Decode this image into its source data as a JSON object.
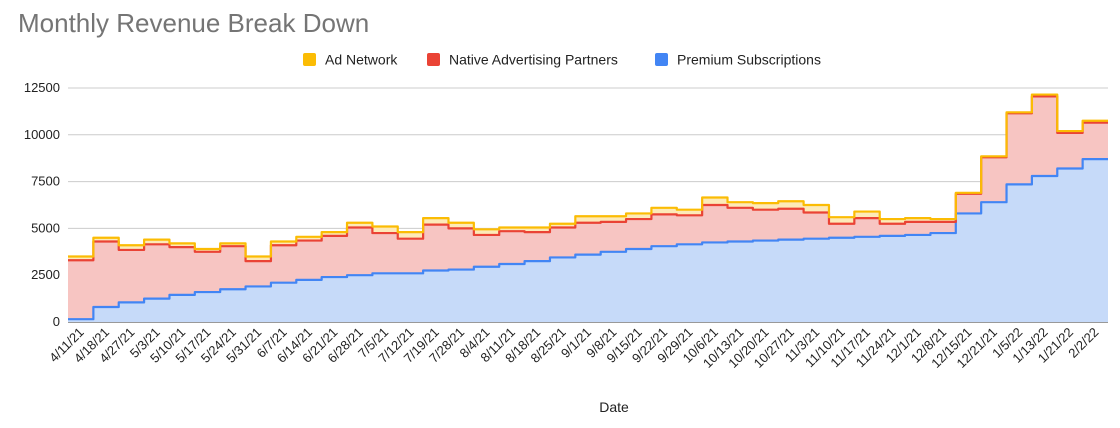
{
  "chart_data": {
    "type": "area",
    "title": "Monthly Revenue Break Down",
    "xlabel": "Date",
    "ylabel": "",
    "ylim": [
      0,
      12500
    ],
    "yticks": [
      0,
      2500,
      5000,
      7500,
      10000,
      12500
    ],
    "ytick_labels": [
      "0",
      "2500",
      "5000",
      "7500",
      "10000",
      "12500"
    ],
    "step": true,
    "stacked": true,
    "grid": true,
    "legend_position": "top",
    "categories": [
      "4/11/21",
      "4/18/21",
      "4/27/21",
      "5/3/21",
      "5/10/21",
      "5/17/21",
      "5/24/21",
      "5/31/21",
      "6/7/21",
      "6/14/21",
      "6/21/21",
      "6/28/21",
      "7/5/21",
      "7/12/21",
      "7/19/21",
      "7/28/21",
      "8/4/21",
      "8/11/21",
      "8/18/21",
      "8/25/21",
      "9/1/21",
      "9/8/21",
      "9/15/21",
      "9/22/21",
      "9/29/21",
      "10/6/21",
      "10/13/21",
      "10/20/21",
      "10/27/21",
      "11/3/21",
      "11/10/21",
      "11/17/21",
      "11/24/21",
      "12/1/21",
      "12/8/21",
      "12/15/21",
      "12/21/21",
      "1/5/22",
      "1/13/22",
      "1/21/22",
      "2/2/22"
    ],
    "series": [
      {
        "name": "Premium Subscriptions",
        "color": "#4285f4",
        "values": [
          150,
          800,
          1050,
          1250,
          1450,
          1600,
          1750,
          1900,
          2100,
          2250,
          2400,
          2500,
          2600,
          2600,
          2750,
          2800,
          2950,
          3100,
          3250,
          3450,
          3600,
          3750,
          3900,
          4050,
          4150,
          4250,
          4300,
          4350,
          4400,
          4450,
          4500,
          4550,
          4600,
          4650,
          4750,
          5800,
          6400,
          7350,
          7800,
          8200,
          8700
        ]
      },
      {
        "name": "Native Advertising Partners",
        "color": "#ea4335",
        "values": [
          3150,
          3500,
          2800,
          2900,
          2550,
          2150,
          2300,
          1350,
          2000,
          2100,
          2200,
          2550,
          2150,
          1850,
          2450,
          2200,
          1700,
          1750,
          1550,
          1600,
          1700,
          1600,
          1600,
          1700,
          1550,
          2000,
          1800,
          1650,
          1650,
          1400,
          750,
          1000,
          650,
          700,
          600,
          1050,
          2400,
          3800,
          4250,
          1900,
          1950
        ]
      },
      {
        "name": "Ad Network",
        "color": "#fbbc04",
        "values": [
          200,
          200,
          250,
          250,
          200,
          150,
          150,
          250,
          200,
          200,
          200,
          250,
          350,
          350,
          350,
          300,
          300,
          200,
          250,
          200,
          350,
          300,
          300,
          350,
          300,
          400,
          300,
          350,
          400,
          400,
          350,
          350,
          250,
          200,
          150,
          50,
          50,
          50,
          100,
          100,
          100
        ]
      }
    ]
  }
}
